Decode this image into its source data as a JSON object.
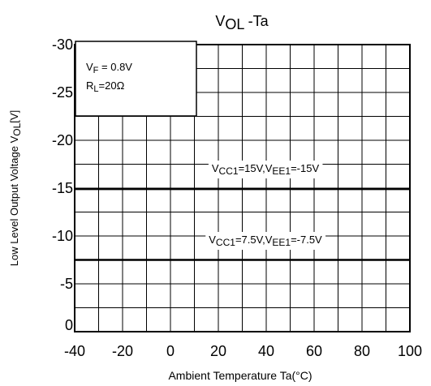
{
  "chart_data": {
    "type": "line",
    "title": {
      "main": "V",
      "sub": "OL",
      "suffix": " -Ta"
    },
    "xlabel": "Ambient Temperature Ta(°C)",
    "ylabel": {
      "main": "Low Level Output Voltage V",
      "sub": "OL",
      "suffix": "[V]"
    },
    "xlim": [
      -40,
      100
    ],
    "ylim": [
      0,
      -30
    ],
    "x_ticks": [
      -40,
      -20,
      0,
      20,
      40,
      60,
      80,
      100
    ],
    "y_ticks": [
      0,
      -5,
      -10,
      -15,
      -20,
      -25,
      -30
    ],
    "x_tick_labels": [
      "-40",
      "-20",
      "0",
      "20",
      "40",
      "60",
      "80",
      "100"
    ],
    "y_tick_labels": [
      "0",
      "-5",
      "-10",
      "-15",
      "-20",
      "-25",
      "-30"
    ],
    "grid": true,
    "conditions": [
      {
        "main": "V",
        "sub": "F",
        "rest": " = 0.8V"
      },
      {
        "main": "R",
        "sub": "L",
        "rest": "=20Ω"
      }
    ],
    "series": [
      {
        "label_parts": [
          {
            "t": "V"
          },
          {
            "t": "CC1",
            "sub": true
          },
          {
            "t": "=15V,V"
          },
          {
            "t": "EE1",
            "sub": true
          },
          {
            "t": "=-15V"
          }
        ],
        "x": [
          -40,
          100
        ],
        "y": [
          -14.9,
          -14.9
        ]
      },
      {
        "label_parts": [
          {
            "t": "V"
          },
          {
            "t": "CC1",
            "sub": true
          },
          {
            "t": "=7.5V,V"
          },
          {
            "t": "EE1",
            "sub": true
          },
          {
            "t": "=-7.5V"
          }
        ],
        "x": [
          -40,
          100
        ],
        "y": [
          -7.5,
          -7.5
        ]
      }
    ]
  }
}
